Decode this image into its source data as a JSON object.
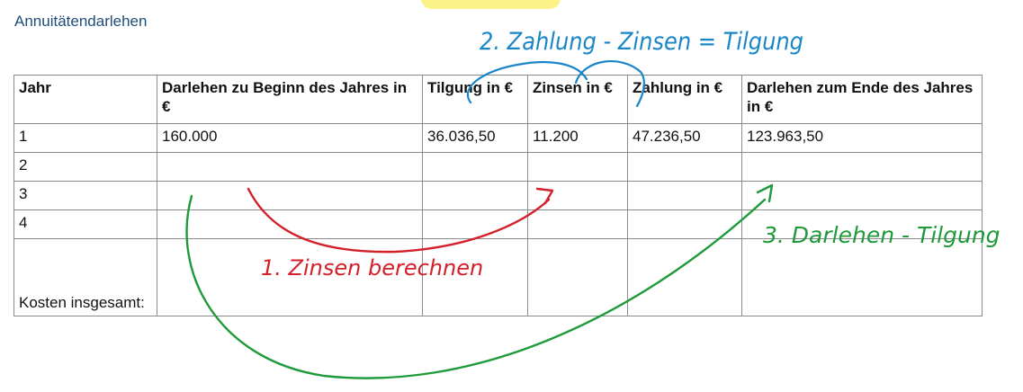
{
  "document": {
    "title": "Annuitätendarlehen"
  },
  "table": {
    "headers": [
      "Jahr",
      "Darlehen zu Beginn des Jahres in €",
      "Tilgung in €",
      "Zinsen in €",
      "Zahlung in €",
      "Darlehen zum Ende des Jahres in €"
    ],
    "rows": [
      [
        "1",
        "160.000",
        "36.036,50",
        "11.200",
        "47.236,50",
        "123.963,50"
      ],
      [
        "2",
        "",
        "",
        "",
        "",
        ""
      ],
      [
        "3",
        "",
        "",
        "",
        "",
        ""
      ],
      [
        "4",
        "",
        "",
        "",
        "",
        ""
      ]
    ],
    "total_label": "Kosten insgesamt:"
  },
  "annotations": {
    "step1": {
      "text": "1. Zinsen berechnen",
      "color": "#d4202a"
    },
    "step2": {
      "text": "2. Zahlung - Zinsen = Tilgung",
      "color": "#1a86c8"
    },
    "step3": {
      "text": "3. Darlehen - Tilgung",
      "color": "#1f9a3a"
    }
  },
  "colors": {
    "title": "#1f4e79",
    "highlight": "#fbf27a",
    "grid": "#8c8c8c"
  }
}
